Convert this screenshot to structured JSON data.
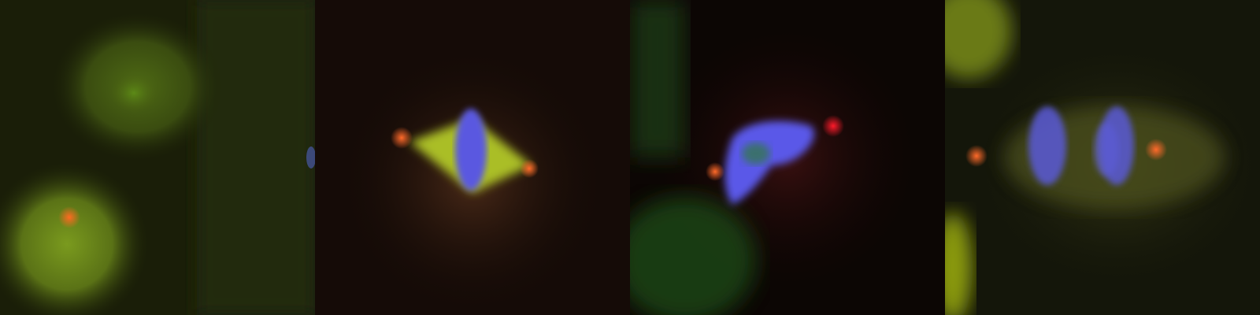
{
  "image": {
    "kind": "fluorescence microscopy montage",
    "channels": {
      "dna": "#4b4bff",
      "spindle": "#b8cc2a",
      "centrosome": "#ff5a1e",
      "cytoplasm": "#3c4a12"
    },
    "panels": [
      {
        "id": "panel-1",
        "phase": "interphase"
      },
      {
        "id": "panel-2",
        "phase": "metaphase"
      },
      {
        "id": "panel-3",
        "phase": "prometaphase"
      },
      {
        "id": "panel-4",
        "phase": "anaphase"
      }
    ]
  }
}
